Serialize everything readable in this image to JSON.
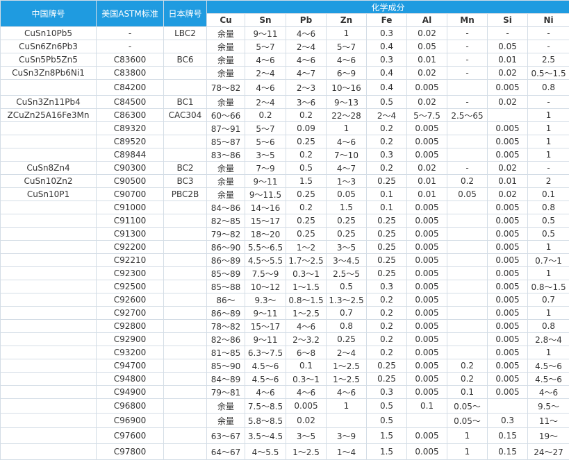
{
  "table": {
    "header": {
      "cn": "中国牌号",
      "us": "美国ASTM标准",
      "jp": "日本牌号",
      "group": "化学成分",
      "elements": [
        "Cu",
        "Sn",
        "Pb",
        "Zn",
        "Fe",
        "Al",
        "Mn",
        "Si",
        "Ni"
      ]
    },
    "rows": [
      [
        "CuSn10Pb5",
        "-",
        "LBC2",
        "余量",
        "9～11",
        "4～6",
        "1",
        "0.3",
        "0.02",
        "-",
        "-",
        "-"
      ],
      [
        "CuSn6Zn6Pb3",
        "-",
        null,
        "余量",
        "5～7",
        "2～4",
        "5～7",
        "0.4",
        "0.05",
        "-",
        "0.05",
        "-"
      ],
      [
        "CuSn5Pb5Zn5",
        "C83600",
        "BC6",
        "余量",
        "4～6",
        "4～6",
        "4～6",
        "0.3",
        "0.01",
        "-",
        "0.01",
        "2.5"
      ],
      [
        "CuSn3Zn8Pb6Ni1",
        "C83800",
        null,
        "余量",
        "2～4",
        "4～7",
        "6～9",
        "0.4",
        "0.02",
        "-",
        "0.02",
        "0.5～1.5"
      ],
      [
        null,
        "C84200",
        null,
        "78～82",
        "4～6",
        "2～3",
        "10～16",
        "0.4",
        "0.005",
        null,
        "0.005",
        "0.8"
      ],
      [
        "CuSn3Zn11Pb4",
        "C84500",
        "BC1",
        "余量",
        "2～4",
        "3～6",
        "9～13",
        "0.5",
        "0.02",
        "-",
        "0.02",
        "-"
      ],
      [
        "ZCuZn25A16Fe3Mn",
        "C86300",
        "CAC304",
        "60～66",
        "0.2",
        "0.2",
        "22～28",
        "2～4",
        "5～7.5",
        "2.5～65",
        null,
        "1"
      ],
      [
        null,
        "C89320",
        null,
        "87～91",
        "5～7",
        "0.09",
        "1",
        "0.2",
        "0.005",
        null,
        "0.005",
        "1"
      ],
      [
        null,
        "C89520",
        null,
        "85～87",
        "5～6",
        "0.25",
        "4～6",
        "0.2",
        "0.005",
        null,
        "0.005",
        "1"
      ],
      [
        null,
        "C89844",
        null,
        "83～86",
        "3～5",
        "0.2",
        "7～10",
        "0.3",
        "0.005",
        null,
        "0.005",
        "1"
      ],
      [
        "CuSn8Zn4",
        "C90300",
        "BC2",
        "余量",
        "7～9",
        "0.5",
        "4～7",
        "0.2",
        "0.02",
        "-",
        "0.02",
        "-"
      ],
      [
        "CuSn10Zn2",
        "C90500",
        "BC3",
        "余量",
        "9～11",
        "1.5",
        "1～3",
        "0.25",
        "0.01",
        "0.2",
        "0.01",
        "2"
      ],
      [
        "CuSn10P1",
        "C90700",
        "PBC2B",
        "余量",
        "9～11.5",
        "0.25",
        "0.05",
        "0.1",
        "0.01",
        "0.05",
        "0.02",
        "0.1"
      ],
      [
        null,
        "C91000",
        null,
        "84～86",
        "14～16",
        "0.2",
        "1.5",
        "0.1",
        "0.005",
        null,
        "0.005",
        "0.8"
      ],
      [
        null,
        "C91100",
        null,
        "82～85",
        "15～17",
        "0.25",
        "0.25",
        "0.25",
        "0.005",
        null,
        "0.005",
        "0.5"
      ],
      [
        null,
        "C91300",
        null,
        "79～82",
        "18～20",
        "0.25",
        "0.25",
        "0.25",
        "0.005",
        null,
        "0.005",
        "0.5"
      ],
      [
        null,
        "C92200",
        null,
        "86～90",
        "5.5～6.5",
        "1～2",
        "3～5",
        "0.25",
        "0.005",
        null,
        "0.005",
        "1"
      ],
      [
        null,
        "C92210",
        null,
        "86～89",
        "4.5～5.5",
        "1.7～2.5",
        "3～4.5",
        "0.25",
        "0.005",
        null,
        "0.005",
        "0.7～1"
      ],
      [
        null,
        "C92300",
        null,
        "85～89",
        "7.5～9",
        "0.3～1",
        "2.5～5",
        "0.25",
        "0.005",
        null,
        "0.005",
        "1"
      ],
      [
        null,
        "C92500",
        null,
        "85～88",
        "10～12",
        "1～1.5",
        "0.5",
        "0.3",
        "0.005",
        null,
        "0.005",
        "0.8～1.5"
      ],
      [
        null,
        "C92600",
        null,
        "86～",
        "9.3～",
        "0.8～1.5",
        "1.3～2.5",
        "0.2",
        "0.005",
        null,
        "0.005",
        "0.7"
      ],
      [
        null,
        "C92700",
        null,
        "86～89",
        "9～11",
        "1～2.5",
        "0.7",
        "0.2",
        "0.005",
        null,
        "0.005",
        "1"
      ],
      [
        null,
        "C92800",
        null,
        "78～82",
        "15～17",
        "4～6",
        "0.8",
        "0.2",
        "0.005",
        null,
        "0.005",
        "0.8"
      ],
      [
        null,
        "C92900",
        null,
        "82～86",
        "9～11",
        "2～3.2",
        "0.25",
        "0.2",
        "0.005",
        null,
        "0.005",
        "2.8～4"
      ],
      [
        null,
        "C93200",
        null,
        "81～85",
        "6.3～7.5",
        "6～8",
        "2～4",
        "0.2",
        "0.005",
        null,
        "0.005",
        "1"
      ],
      [
        null,
        "C94700",
        null,
        "85～90",
        "4.5～6",
        "0.1",
        "1～2.5",
        "0.25",
        "0.005",
        "0.2",
        "0.005",
        "4.5～6"
      ],
      [
        null,
        "C94800",
        null,
        "84～89",
        "4.5～6",
        "0.3～1",
        "1～2.5",
        "0.25",
        "0.005",
        "0.2",
        "0.005",
        "4.5～6"
      ],
      [
        null,
        "C94900",
        null,
        "79～81",
        "4～6",
        "4～6",
        "4～6",
        "0.3",
        "0.005",
        "0.1",
        "0.005",
        "4～6"
      ],
      [
        null,
        "C96800",
        null,
        "余量",
        "7.5～8.5",
        "0.005",
        "1",
        "0.5",
        "0.1",
        "0.05～",
        null,
        "9.5～"
      ],
      [
        null,
        "C96900",
        null,
        "余量",
        "5.8～8.5",
        "0.02",
        null,
        "0.5",
        null,
        "0.05～",
        "0.3",
        "11～"
      ],
      [
        null,
        "C97600",
        null,
        "63～67",
        "3.5～4.5",
        "3～5",
        "3～9",
        "1.5",
        "0.005",
        "1",
        "0.15",
        "19～"
      ],
      [
        null,
        "C97800",
        null,
        "64～67",
        "4～5.5",
        "1～2.5",
        "1～4",
        "1.5",
        "0.005",
        "1",
        "0.15",
        "24～27"
      ]
    ]
  }
}
